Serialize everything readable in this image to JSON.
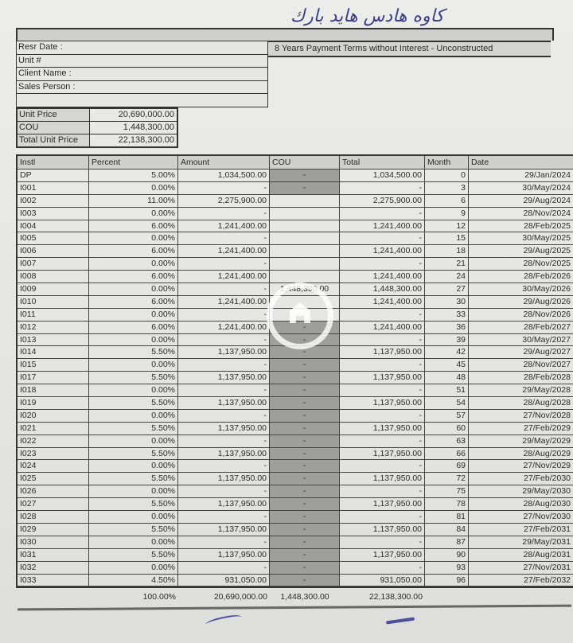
{
  "handwritten_note": "كاوه هادس هايد بارك",
  "title": "8 Years  Payment Terms without Interest - Unconstructed",
  "info": {
    "resr_date": "Resr Date :",
    "unit": "Unit #",
    "client_name": "Client Name :",
    "sales_person": "Sales Person :"
  },
  "price": {
    "unit_price_label": "Unit Price",
    "unit_price": "20,690,000.00",
    "cou_label": "COU",
    "cou": "1,448,300.00",
    "total_label": "Total Unit Price",
    "total": "22,138,300.00"
  },
  "columns": [
    "Instl",
    "Percent",
    "Amount",
    "COU",
    "Total",
    "Month",
    "Date"
  ],
  "rows": [
    {
      "instl": "DP",
      "percent": "5.00%",
      "amount": "1,034,500.00",
      "cou": "-",
      "total": "1,034,500.00",
      "month": "0",
      "date": "29/Jan/2024"
    },
    {
      "instl": "I001",
      "percent": "0.00%",
      "amount": "-",
      "cou": "-",
      "total": "-",
      "month": "3",
      "date": "30/May/2024"
    },
    {
      "instl": "I002",
      "percent": "11.00%",
      "amount": "2,275,900.00",
      "cou": "",
      "total": "2,275,900.00",
      "month": "6",
      "date": "29/Aug/2024"
    },
    {
      "instl": "I003",
      "percent": "0.00%",
      "amount": "-",
      "cou": "",
      "total": "-",
      "month": "9",
      "date": "28/Nov/2024"
    },
    {
      "instl": "I004",
      "percent": "6.00%",
      "amount": "1,241,400.00",
      "cou": "",
      "total": "1,241,400.00",
      "month": "12",
      "date": "28/Feb/2025"
    },
    {
      "instl": "I005",
      "percent": "0.00%",
      "amount": "-",
      "cou": "",
      "total": "-",
      "month": "15",
      "date": "30/May/2025"
    },
    {
      "instl": "I006",
      "percent": "6.00%",
      "amount": "1,241,400.00",
      "cou": "",
      "total": "1,241,400.00",
      "month": "18",
      "date": "29/Aug/2025"
    },
    {
      "instl": "I007",
      "percent": "0.00%",
      "amount": "-",
      "cou": "",
      "total": "-",
      "month": "21",
      "date": "28/Nov/2025"
    },
    {
      "instl": "I008",
      "percent": "6.00%",
      "amount": "1,241,400.00",
      "cou": "",
      "total": "1,241,400.00",
      "month": "24",
      "date": "28/Feb/2026"
    },
    {
      "instl": "I009",
      "percent": "0.00%",
      "amount": "-",
      "cou": "1,448,300.00",
      "total": "1,448,300.00",
      "month": "27",
      "date": "30/May/2026"
    },
    {
      "instl": "I010",
      "percent": "6.00%",
      "amount": "1,241,400.00",
      "cou": "",
      "total": "1,241,400.00",
      "month": "30",
      "date": "29/Aug/2026"
    },
    {
      "instl": "I011",
      "percent": "0.00%",
      "amount": "-",
      "cou": "",
      "total": "-",
      "month": "33",
      "date": "28/Nov/2026"
    },
    {
      "instl": "I012",
      "percent": "6.00%",
      "amount": "1,241,400.00",
      "cou": "-",
      "total": "1,241,400.00",
      "month": "36",
      "date": "28/Feb/2027"
    },
    {
      "instl": "I013",
      "percent": "0.00%",
      "amount": "-",
      "cou": "-",
      "total": "-",
      "month": "39",
      "date": "30/May/2027"
    },
    {
      "instl": "I014",
      "percent": "5.50%",
      "amount": "1,137,950.00",
      "cou": "-",
      "total": "1,137,950.00",
      "month": "42",
      "date": "29/Aug/2027"
    },
    {
      "instl": "I015",
      "percent": "0.00%",
      "amount": "-",
      "cou": "-",
      "total": "-",
      "month": "45",
      "date": "28/Nov/2027"
    },
    {
      "instl": "I017",
      "percent": "5.50%",
      "amount": "1,137,950.00",
      "cou": "-",
      "total": "1,137,950.00",
      "month": "48",
      "date": "28/Feb/2028"
    },
    {
      "instl": "I018",
      "percent": "0.00%",
      "amount": "-",
      "cou": "-",
      "total": "-",
      "month": "51",
      "date": "29/May/2028"
    },
    {
      "instl": "I019",
      "percent": "5.50%",
      "amount": "1,137,950.00",
      "cou": "-",
      "total": "1,137,950.00",
      "month": "54",
      "date": "28/Aug/2028"
    },
    {
      "instl": "I020",
      "percent": "0.00%",
      "amount": "-",
      "cou": "-",
      "total": "-",
      "month": "57",
      "date": "27/Nov/2028"
    },
    {
      "instl": "I021",
      "percent": "5.50%",
      "amount": "1,137,950.00",
      "cou": "-",
      "total": "1,137,950.00",
      "month": "60",
      "date": "27/Feb/2029"
    },
    {
      "instl": "I022",
      "percent": "0.00%",
      "amount": "-",
      "cou": "-",
      "total": "-",
      "month": "63",
      "date": "29/May/2029"
    },
    {
      "instl": "I023",
      "percent": "5.50%",
      "amount": "1,137,950.00",
      "cou": "-",
      "total": "1,137,950.00",
      "month": "66",
      "date": "28/Aug/2029"
    },
    {
      "instl": "I024",
      "percent": "0.00%",
      "amount": "-",
      "cou": "-",
      "total": "-",
      "month": "69",
      "date": "27/Nov/2029"
    },
    {
      "instl": "I025",
      "percent": "5.50%",
      "amount": "1,137,950.00",
      "cou": "-",
      "total": "1,137,950.00",
      "month": "72",
      "date": "27/Feb/2030"
    },
    {
      "instl": "I026",
      "percent": "0.00%",
      "amount": "-",
      "cou": "-",
      "total": "-",
      "month": "75",
      "date": "29/May/2030"
    },
    {
      "instl": "I027",
      "percent": "5.50%",
      "amount": "1,137,950.00",
      "cou": "-",
      "total": "1,137,950.00",
      "month": "78",
      "date": "28/Aug/2030"
    },
    {
      "instl": "I028",
      "percent": "0.00%",
      "amount": "-",
      "cou": "-",
      "total": "-",
      "month": "81",
      "date": "27/Nov/2030"
    },
    {
      "instl": "I029",
      "percent": "5.50%",
      "amount": "1,137,950.00",
      "cou": "-",
      "total": "1,137,950.00",
      "month": "84",
      "date": "27/Feb/2031"
    },
    {
      "instl": "I030",
      "percent": "0.00%",
      "amount": "-",
      "cou": "-",
      "total": "-",
      "month": "87",
      "date": "29/May/2031"
    },
    {
      "instl": "I031",
      "percent": "5.50%",
      "amount": "1,137,950.00",
      "cou": "-",
      "total": "1,137,950.00",
      "month": "90",
      "date": "28/Aug/2031"
    },
    {
      "instl": "I032",
      "percent": "0.00%",
      "amount": "-",
      "cou": "-",
      "total": "-",
      "month": "93",
      "date": "27/Nov/2031"
    },
    {
      "instl": "I033",
      "percent": "4.50%",
      "amount": "931,050.00",
      "cou": "-",
      "total": "931,050.00",
      "month": "96",
      "date": "27/Feb/2032"
    }
  ],
  "totals": {
    "percent": "100.00%",
    "amount": "20,690,000.00",
    "cou": "1,448,300.00",
    "total": "22,138,300.00"
  }
}
